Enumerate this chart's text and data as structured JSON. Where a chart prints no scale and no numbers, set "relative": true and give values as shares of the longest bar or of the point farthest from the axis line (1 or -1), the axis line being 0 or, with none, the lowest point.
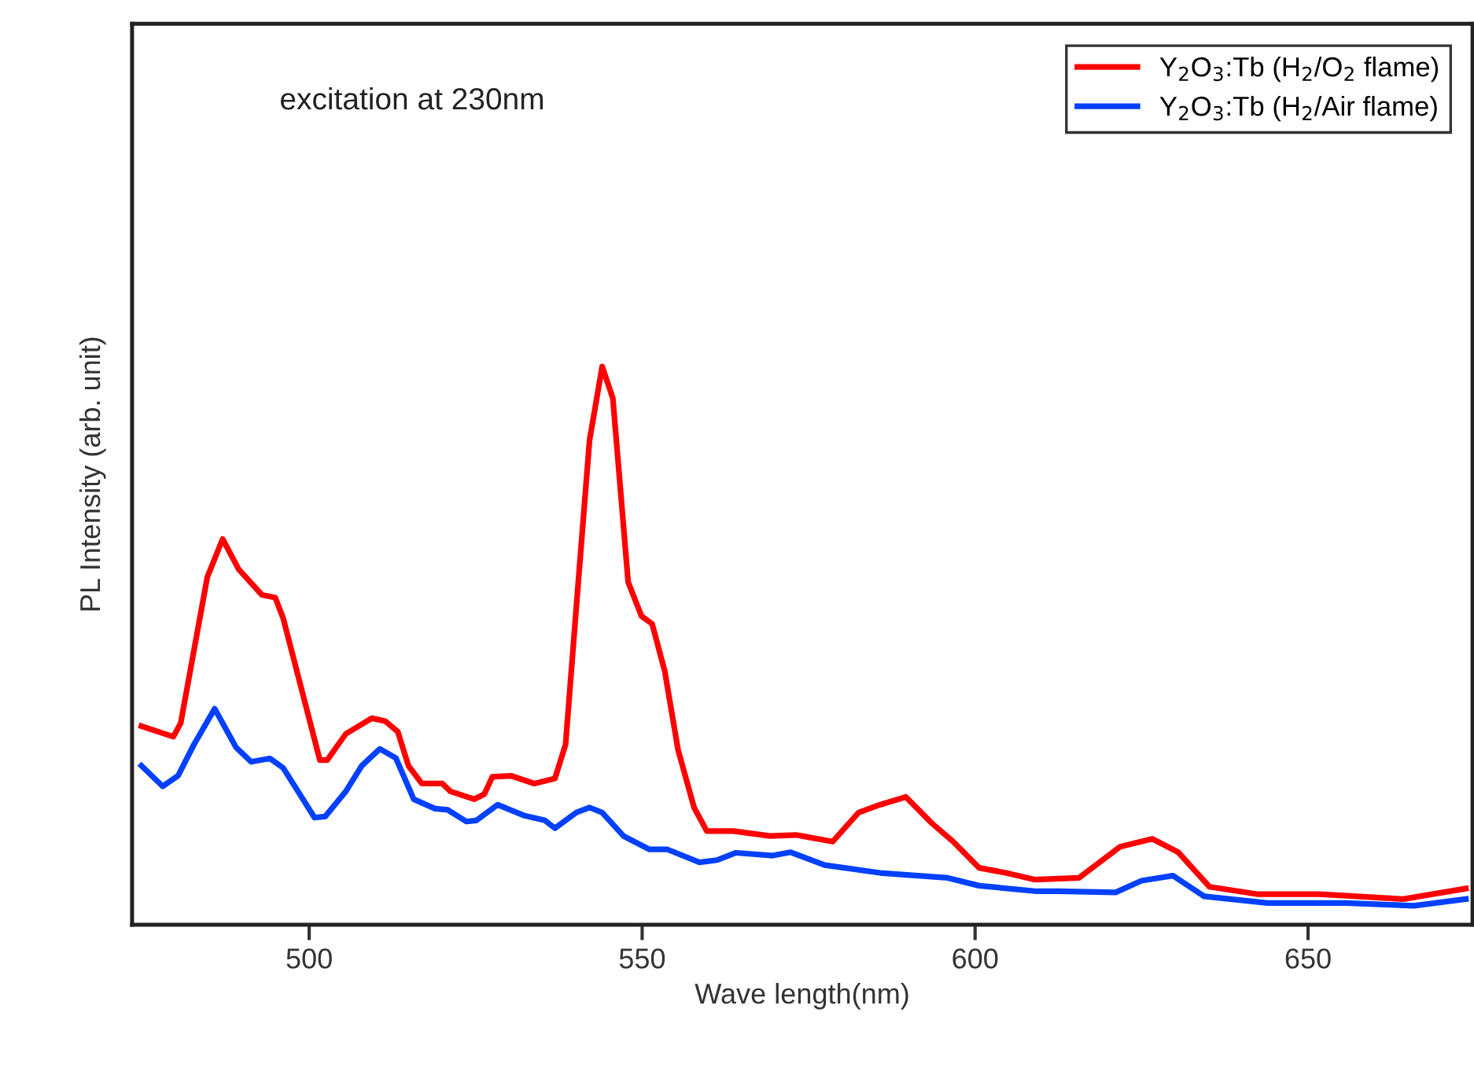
{
  "chart_data": {
    "type": "line",
    "relative": true,
    "xlabel": "Wave length(nm)",
    "ylabel": "PL Intensity (arb. unit)",
    "annotations": [
      "excitation at 230nm"
    ],
    "xlim": [
      473.4,
      674.7
    ],
    "xticks": [
      500,
      550,
      600,
      650
    ],
    "grid": false,
    "legend": "top right",
    "line_style": "solid",
    "marker": "none",
    "series": [
      {
        "name": "Y$_{2}$O$_{3}$:Tb (H$_{2}$/O$_{2}$ flame)",
        "color": "#ff0000",
        "x": [
          474.8,
          479.6,
          480.7,
          484.7,
          487.0,
          489.4,
          492.9,
          494.9,
          496.1,
          501.6,
          502.7,
          505.5,
          509.4,
          511.4,
          513.3,
          514.9,
          516.9,
          520.0,
          521.2,
          524.8,
          526.3,
          527.5,
          530.3,
          533.8,
          536.9,
          538.5,
          540.1,
          542.1,
          544.0,
          545.6,
          547.9,
          549.9,
          551.5,
          553.4,
          555.4,
          557.8,
          559.7,
          563.7,
          569.2,
          573.1,
          578.6,
          582.5,
          585.7,
          589.6,
          593.5,
          596.7,
          600.6,
          604.6,
          608.9,
          615.6,
          621.8,
          626.6,
          630.5,
          635.2,
          642.3,
          651.7,
          664.3,
          673.7
        ],
        "values": [
          0.356,
          0.337,
          0.361,
          0.623,
          0.691,
          0.637,
          0.591,
          0.586,
          0.549,
          0.295,
          0.295,
          0.342,
          0.37,
          0.365,
          0.346,
          0.285,
          0.253,
          0.253,
          0.239,
          0.225,
          0.234,
          0.265,
          0.267,
          0.253,
          0.262,
          0.323,
          0.567,
          0.868,
          1.0,
          0.943,
          0.614,
          0.553,
          0.539,
          0.454,
          0.313,
          0.21,
          0.168,
          0.168,
          0.159,
          0.161,
          0.149,
          0.201,
          0.215,
          0.229,
          0.182,
          0.149,
          0.102,
          0.093,
          0.081,
          0.084,
          0.14,
          0.154,
          0.13,
          0.068,
          0.055,
          0.055,
          0.046,
          0.065
        ]
      },
      {
        "name": "Y$_{2}$O$_{3}$:Tb (H$_{2}$/Air flame)",
        "color": "#0040ff",
        "x": [
          474.8,
          478.0,
          480.3,
          482.7,
          485.8,
          489.0,
          491.3,
          494.1,
          496.1,
          500.8,
          502.4,
          505.5,
          507.9,
          510.6,
          513.0,
          515.7,
          518.9,
          520.8,
          523.6,
          525.1,
          528.3,
          532.2,
          535.4,
          536.9,
          540.1,
          542.1,
          544.0,
          547.2,
          551.1,
          553.8,
          558.6,
          561.3,
          564.1,
          569.6,
          572.3,
          577.4,
          585.7,
          595.9,
          600.6,
          609.3,
          612.4,
          621.1,
          625.0,
          629.7,
          634.4,
          643.9,
          655.7,
          665.9,
          673.7
        ],
        "values": [
          0.285,
          0.248,
          0.267,
          0.323,
          0.387,
          0.318,
          0.292,
          0.298,
          0.281,
          0.192,
          0.194,
          0.239,
          0.285,
          0.315,
          0.299,
          0.225,
          0.208,
          0.206,
          0.185,
          0.187,
          0.215,
          0.196,
          0.187,
          0.173,
          0.201,
          0.21,
          0.201,
          0.159,
          0.135,
          0.135,
          0.112,
          0.116,
          0.129,
          0.124,
          0.13,
          0.107,
          0.093,
          0.084,
          0.07,
          0.06,
          0.06,
          0.058,
          0.079,
          0.088,
          0.051,
          0.039,
          0.039,
          0.034,
          0.046
        ]
      }
    ]
  }
}
